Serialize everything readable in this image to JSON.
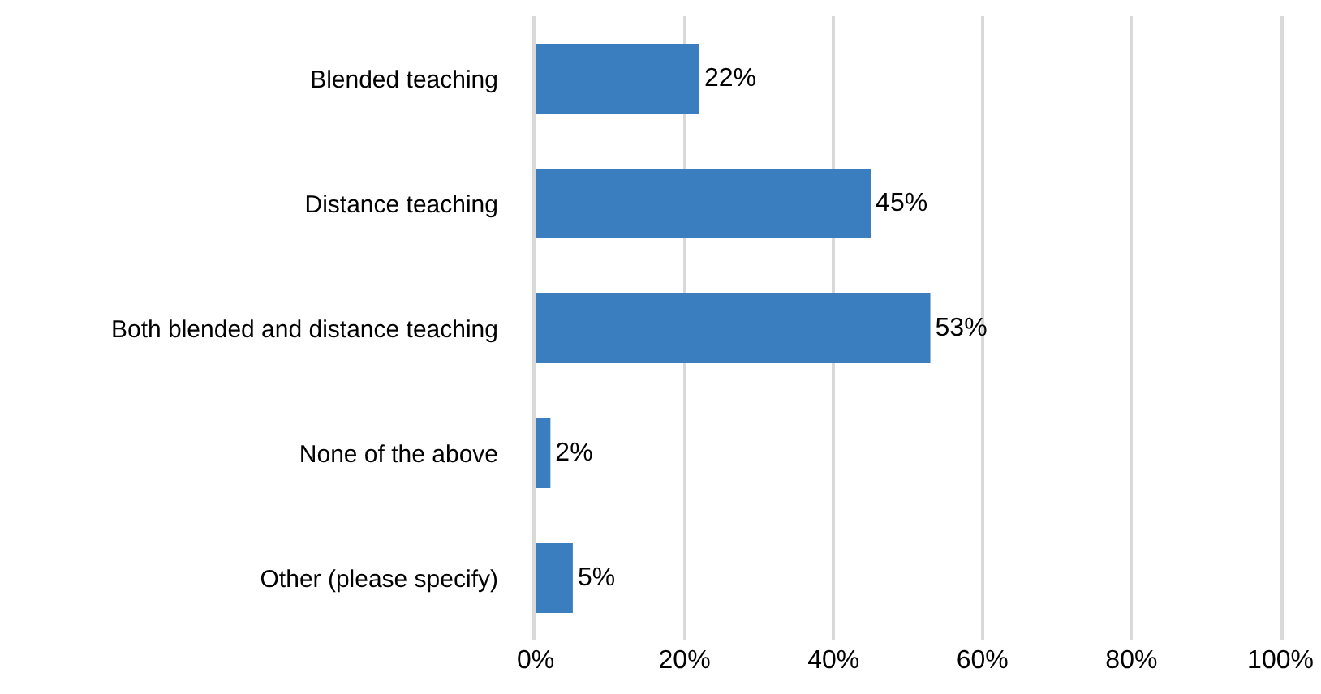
{
  "chart_data": {
    "type": "bar",
    "orientation": "horizontal",
    "categories": [
      "Blended teaching",
      "Distance teaching",
      "Both blended and distance teaching",
      "None of the above",
      "Other (please specify)"
    ],
    "values": [
      22,
      45,
      53,
      2,
      5
    ],
    "value_labels": [
      "22%",
      "45%",
      "53%",
      "2%",
      "5%"
    ],
    "color": "#3a7ebf",
    "xlim": [
      0,
      100
    ],
    "xticks": [
      {
        "value": 0,
        "label": "0%"
      },
      {
        "value": 20,
        "label": "20%"
      },
      {
        "value": 40,
        "label": "40%"
      },
      {
        "value": 60,
        "label": "60%"
      },
      {
        "value": 80,
        "label": "80%"
      },
      {
        "value": 100,
        "label": "100%"
      }
    ],
    "grid": "x"
  }
}
